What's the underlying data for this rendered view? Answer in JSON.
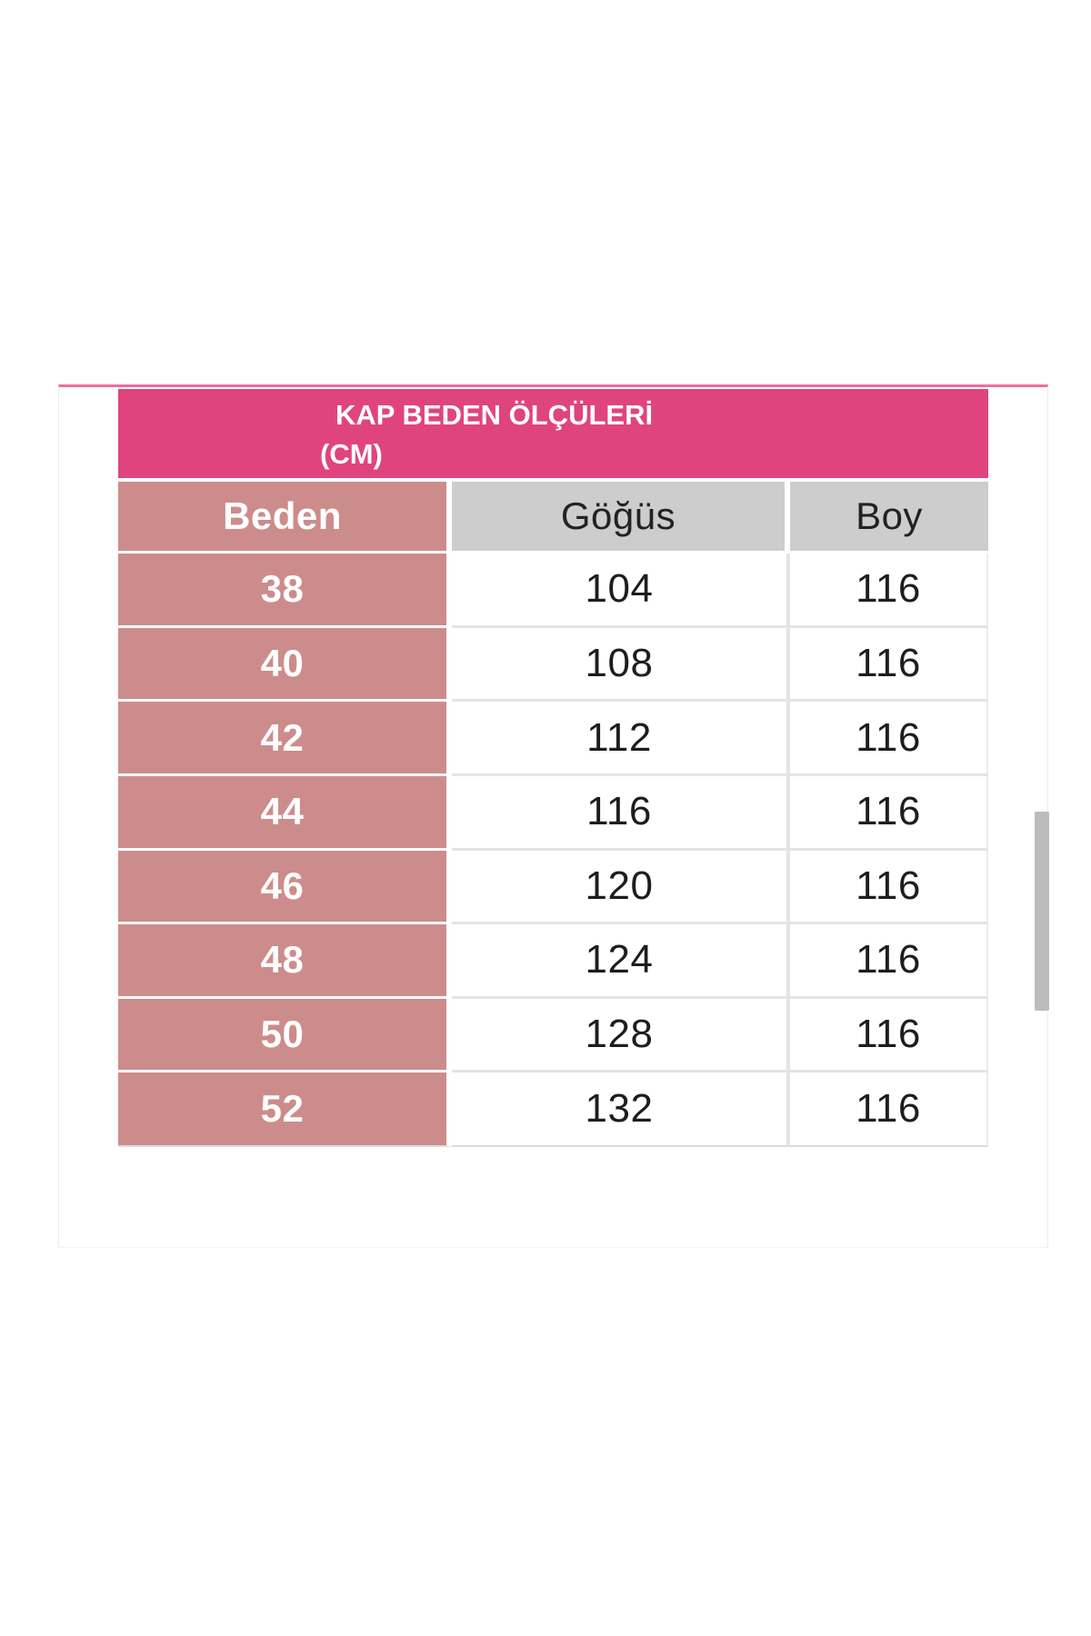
{
  "size_chart": {
    "title_line1": "KAP BEDEN ÖLÇÜLERİ",
    "title_line2": "(CM)",
    "columns": [
      "Beden",
      "Göğüs",
      "Boy"
    ],
    "rows": [
      [
        "38",
        "104",
        "116"
      ],
      [
        "40",
        "108",
        "116"
      ],
      [
        "42",
        "112",
        "116"
      ],
      [
        "44",
        "116",
        "116"
      ],
      [
        "46",
        "120",
        "116"
      ],
      [
        "48",
        "124",
        "116"
      ],
      [
        "50",
        "128",
        "116"
      ],
      [
        "52",
        "132",
        "116"
      ]
    ],
    "colors": {
      "title_bg": "#e0447e",
      "accent_line": "#ec6f9c",
      "size_column_bg": "#cd8c8c",
      "header_bg": "#cdcdcd",
      "scrollbar": "#bcbcbc"
    }
  }
}
